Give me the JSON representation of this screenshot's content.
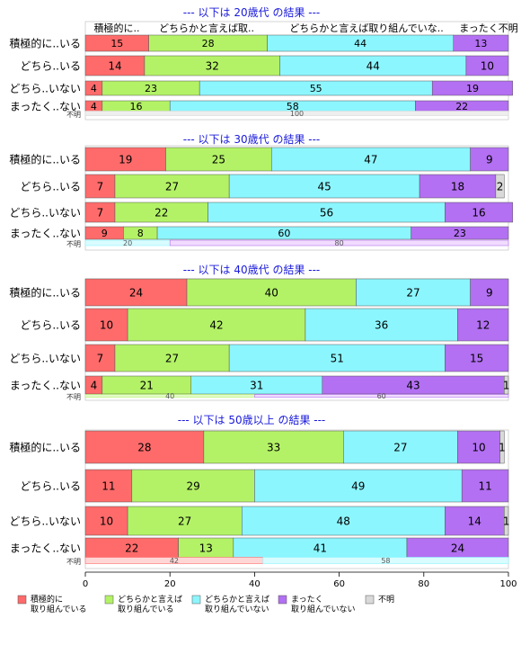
{
  "chart_data": {
    "type": "bar",
    "orientation": "horizontal",
    "stacked": true,
    "xlim": [
      0,
      100
    ],
    "x_ticks": [
      "0",
      "20",
      "40",
      "60",
      "80",
      "100"
    ],
    "column_headers": [
      "積極的に..",
      "どちらかと言えば取..",
      "どちらかと言えば取り組んでいな..",
      "まったく不明"
    ],
    "legend_position": "bottom-left",
    "series": [
      {
        "name": "積極的に\n取り組んでいる",
        "color": "#ff6b6b"
      },
      {
        "name": "どちらかと言えば\n取り組んでいる",
        "color": "#b3f266"
      },
      {
        "name": "どちらかと言えば\n取り組んでいない",
        "color": "#8cf6ff"
      },
      {
        "name": "まったく\n取り組んでいない",
        "color": "#b370f2"
      },
      {
        "name": "不明",
        "color": "#d9d9d9"
      }
    ],
    "panels": [
      {
        "title": "--- 以下は 20歳代 の結果 ---",
        "rows": [
          {
            "label": "積極的に..いる",
            "values": [
              15,
              28,
              44,
              13,
              0
            ]
          },
          {
            "label": "どちら..いる",
            "values": [
              14,
              32,
              44,
              10,
              0
            ]
          },
          {
            "label": "どちら..いない",
            "values": [
              4,
              23,
              55,
              19,
              0
            ]
          },
          {
            "label": "まったく..ない",
            "values": [
              4,
              16,
              58,
              22,
              0
            ]
          }
        ],
        "unknown": {
          "label": "不明",
          "values": [
            0,
            0,
            0,
            0,
            100
          ]
        }
      },
      {
        "title": "--- 以下は 30歳代 の結果 ---",
        "rows": [
          {
            "label": "積極的に..いる",
            "values": [
              19,
              25,
              47,
              9,
              0
            ]
          },
          {
            "label": "どちら..いる",
            "values": [
              7,
              27,
              45,
              18,
              2
            ]
          },
          {
            "label": "どちら..いない",
            "values": [
              7,
              22,
              56,
              16,
              0
            ]
          },
          {
            "label": "まったく..ない",
            "values": [
              9,
              8,
              60,
              23,
              0
            ]
          }
        ],
        "unknown": {
          "label": "不明",
          "values": [
            0,
            0,
            20,
            80,
            0
          ]
        }
      },
      {
        "title": "--- 以下は 40歳代 の結果 ---",
        "rows": [
          {
            "label": "積極的に..いる",
            "values": [
              24,
              40,
              27,
              9,
              0
            ]
          },
          {
            "label": "どちら..いる",
            "values": [
              10,
              42,
              36,
              12,
              0
            ]
          },
          {
            "label": "どちら..いない",
            "values": [
              7,
              27,
              51,
              15,
              0
            ]
          },
          {
            "label": "まったく..ない",
            "values": [
              4,
              21,
              31,
              43,
              1
            ]
          }
        ],
        "unknown": {
          "label": "不明",
          "values": [
            0,
            40,
            0,
            60,
            0
          ]
        }
      },
      {
        "title": "--- 以下は 50歳以上 の結果 ---",
        "rows": [
          {
            "label": "積極的に..いる",
            "values": [
              28,
              33,
              27,
              10,
              1
            ]
          },
          {
            "label": "どちら..いる",
            "values": [
              11,
              29,
              49,
              11,
              0
            ]
          },
          {
            "label": "どちら..いない",
            "values": [
              10,
              27,
              48,
              14,
              1
            ]
          },
          {
            "label": "まったく..ない",
            "values": [
              22,
              13,
              41,
              24,
              0
            ]
          }
        ],
        "unknown": {
          "label": "不明",
          "values": [
            42,
            0,
            58,
            0,
            0
          ]
        }
      }
    ]
  }
}
